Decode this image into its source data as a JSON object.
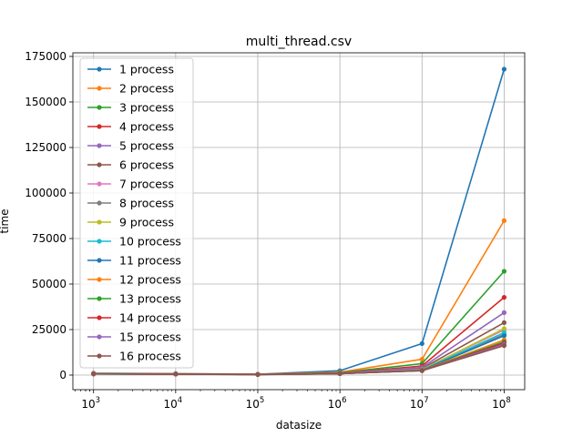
{
  "chart_data": {
    "type": "line",
    "title": "multi_thread.csv",
    "xlabel": "datasize",
    "ylabel": "time",
    "xscale": "log",
    "x": [
      1000,
      10000,
      100000,
      1000000,
      10000000,
      100000000
    ],
    "x_tick_labels": [
      {
        "base": "10",
        "exp": "3"
      },
      {
        "base": "10",
        "exp": "4"
      },
      {
        "base": "10",
        "exp": "5"
      },
      {
        "base": "10",
        "exp": "6"
      },
      {
        "base": "10",
        "exp": "7"
      },
      {
        "base": "10",
        "exp": "8"
      }
    ],
    "y_ticks": [
      0,
      25000,
      50000,
      75000,
      100000,
      125000,
      150000,
      175000
    ],
    "y_tick_labels": [
      "0",
      "25000",
      "50000",
      "75000",
      "100000",
      "125000",
      "150000",
      "175000"
    ],
    "xlim": [
      560,
      178000000
    ],
    "ylim": [
      -8000,
      177000
    ],
    "grid": true,
    "legend_position": "top-left",
    "series": [
      {
        "name": "1 process",
        "color": "#1f77b4",
        "values": [
          1000,
          800,
          500,
          2400,
          17300,
          168000
        ]
      },
      {
        "name": "2 process",
        "color": "#ff7f0e",
        "values": [
          900,
          700,
          450,
          1600,
          8700,
          84800
        ]
      },
      {
        "name": "3 process",
        "color": "#2ca02c",
        "values": [
          850,
          650,
          420,
          1300,
          6300,
          57000
        ]
      },
      {
        "name": "4 process",
        "color": "#d62728",
        "values": [
          800,
          620,
          400,
          1100,
          5000,
          42700
        ]
      },
      {
        "name": "5 process",
        "color": "#9467bd",
        "values": [
          780,
          600,
          390,
          1000,
          4200,
          34300
        ]
      },
      {
        "name": "6 process",
        "color": "#8c564b",
        "values": [
          760,
          580,
          380,
          950,
          3600,
          28800
        ]
      },
      {
        "name": "7 process",
        "color": "#e377c2",
        "values": [
          740,
          570,
          370,
          900,
          3200,
          24800
        ]
      },
      {
        "name": "8 process",
        "color": "#7f7f7f",
        "values": [
          730,
          560,
          360,
          870,
          3000,
          22300
        ]
      },
      {
        "name": "9 process",
        "color": "#bcbd22",
        "values": [
          720,
          550,
          355,
          850,
          2900,
          25500
        ]
      },
      {
        "name": "10 process",
        "color": "#17becf",
        "values": [
          710,
          545,
          350,
          840,
          2800,
          23300
        ]
      },
      {
        "name": "11 process",
        "color": "#1f77b4",
        "values": [
          700,
          540,
          345,
          830,
          2700,
          21600
        ]
      },
      {
        "name": "12 process",
        "color": "#ff7f0e",
        "values": [
          690,
          535,
          340,
          820,
          2600,
          19300
        ]
      },
      {
        "name": "13 process",
        "color": "#2ca02c",
        "values": [
          680,
          530,
          335,
          810,
          2550,
          18300
        ]
      },
      {
        "name": "14 process",
        "color": "#d62728",
        "values": [
          670,
          525,
          330,
          800,
          2500,
          17600
        ]
      },
      {
        "name": "15 process",
        "color": "#9467bd",
        "values": [
          660,
          520,
          325,
          790,
          2450,
          16900
        ]
      },
      {
        "name": "16 process",
        "color": "#8c564b",
        "values": [
          650,
          515,
          320,
          780,
          2400,
          16200
        ]
      }
    ]
  }
}
